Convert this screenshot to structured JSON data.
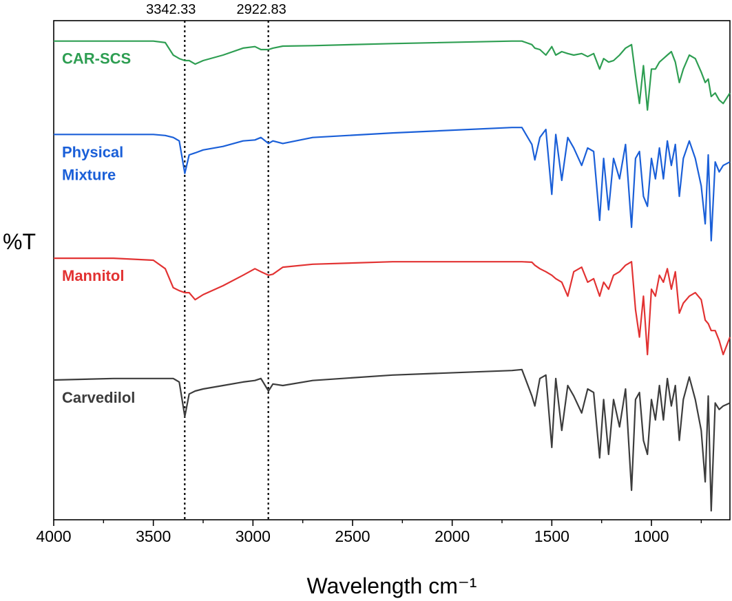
{
  "chart_data": {
    "type": "line",
    "x_label": "Wavelength cm⁻¹",
    "y_label": "%T",
    "xlim": [
      4000,
      606
    ],
    "ylim": [
      0,
      100
    ],
    "xticks": [
      4000,
      3500,
      3000,
      2500,
      2000,
      1500,
      1000
    ],
    "xminorticks": [
      3750,
      3250,
      2750,
      2250,
      1750,
      1250,
      750
    ],
    "reference_lines": [
      3342.33,
      2922.83
    ],
    "x": [
      4000,
      3700,
      3500,
      3440,
      3400,
      3370,
      3342,
      3320,
      3290,
      3250,
      3150,
      3050,
      2990,
      2960,
      2922,
      2900,
      2850,
      2700,
      2300,
      1700,
      1650,
      1600,
      1585,
      1560,
      1530,
      1500,
      1480,
      1450,
      1420,
      1390,
      1350,
      1320,
      1290,
      1260,
      1240,
      1215,
      1190,
      1160,
      1130,
      1100,
      1080,
      1060,
      1040,
      1020,
      1000,
      980,
      960,
      940,
      920,
      900,
      880,
      860,
      840,
      810,
      780,
      750,
      730,
      715,
      700,
      680,
      660,
      640,
      606
    ],
    "series": [
      {
        "name": "CAR-SCS",
        "color": "#2e9e52",
        "values": [
          95.9,
          95.9,
          95.9,
          95.6,
          93.1,
          92.4,
          92.0,
          92.0,
          91.3,
          92.0,
          93.1,
          94.5,
          94.8,
          94.2,
          94.2,
          94.5,
          94.9,
          95.0,
          95.4,
          95.9,
          95.9,
          95.2,
          94.5,
          94.2,
          93.1,
          94.8,
          93.1,
          93.8,
          93.4,
          93.1,
          93.4,
          92.8,
          93.4,
          90.3,
          92.4,
          91.7,
          92.0,
          93.1,
          94.5,
          95.2,
          89.0,
          83.4,
          91.0,
          82.1,
          90.3,
          90.3,
          91.7,
          92.4,
          93.1,
          93.8,
          91.7,
          87.6,
          90.3,
          93.1,
          92.4,
          89.7,
          87.6,
          88.3,
          84.8,
          85.5,
          84.1,
          83.4,
          85.5
        ]
      },
      {
        "name": "Physical Mixture",
        "color": "#1a5fd8",
        "values": [
          77.2,
          77.2,
          77.2,
          77.0,
          76.6,
          75.9,
          69.4,
          73.1,
          73.5,
          74.1,
          74.8,
          75.9,
          76.1,
          76.6,
          75.4,
          75.9,
          75.4,
          76.6,
          77.5,
          78.6,
          78.6,
          75.2,
          72.1,
          76.6,
          78.2,
          65.2,
          77.2,
          68.0,
          76.6,
          74.5,
          71.0,
          74.5,
          73.8,
          60.0,
          72.4,
          62.1,
          72.4,
          68.3,
          75.2,
          58.6,
          72.4,
          73.8,
          64.8,
          62.8,
          72.4,
          68.3,
          74.5,
          68.3,
          75.9,
          71.0,
          75.2,
          64.8,
          72.4,
          75.9,
          72.4,
          66.9,
          59.3,
          73.1,
          55.9,
          71.7,
          69.7,
          71.0,
          71.7
        ]
      },
      {
        "name": "Mannitol",
        "color": "#e23232",
        "values": [
          52.4,
          52.4,
          52.0,
          50.3,
          46.5,
          45.9,
          45.5,
          45.5,
          44.1,
          45.1,
          46.9,
          49.0,
          50.3,
          49.7,
          49.0,
          49.2,
          50.6,
          51.2,
          51.7,
          51.7,
          51.7,
          51.6,
          51.0,
          50.3,
          49.7,
          49.0,
          48.3,
          47.6,
          44.8,
          49.7,
          50.6,
          47.6,
          48.3,
          44.8,
          47.6,
          46.2,
          49.0,
          49.7,
          51.0,
          51.7,
          42.1,
          36.6,
          44.8,
          33.1,
          46.2,
          44.8,
          49.0,
          47.6,
          50.3,
          46.2,
          49.7,
          41.4,
          43.4,
          44.8,
          45.5,
          44.1,
          40.0,
          39.3,
          37.9,
          37.9,
          35.9,
          33.1,
          36.6
        ]
      },
      {
        "name": "Carvedilol",
        "color": "#3c3c3c",
        "values": [
          28.0,
          28.3,
          28.3,
          28.3,
          28.3,
          27.6,
          20.7,
          25.2,
          25.8,
          26.2,
          26.9,
          27.6,
          27.9,
          28.3,
          25.8,
          27.2,
          26.9,
          27.9,
          29.0,
          29.9,
          30.1,
          24.8,
          22.8,
          28.3,
          29.0,
          14.5,
          28.3,
          17.9,
          26.9,
          24.8,
          21.4,
          26.2,
          25.5,
          12.4,
          24.1,
          13.1,
          24.1,
          18.6,
          26.2,
          5.9,
          24.1,
          25.5,
          15.9,
          13.1,
          24.1,
          20.0,
          26.9,
          20.0,
          28.3,
          22.8,
          26.9,
          15.9,
          24.1,
          28.6,
          24.1,
          17.9,
          7.6,
          24.8,
          1.8,
          23.4,
          22.1,
          22.8,
          23.4
        ]
      }
    ]
  }
}
